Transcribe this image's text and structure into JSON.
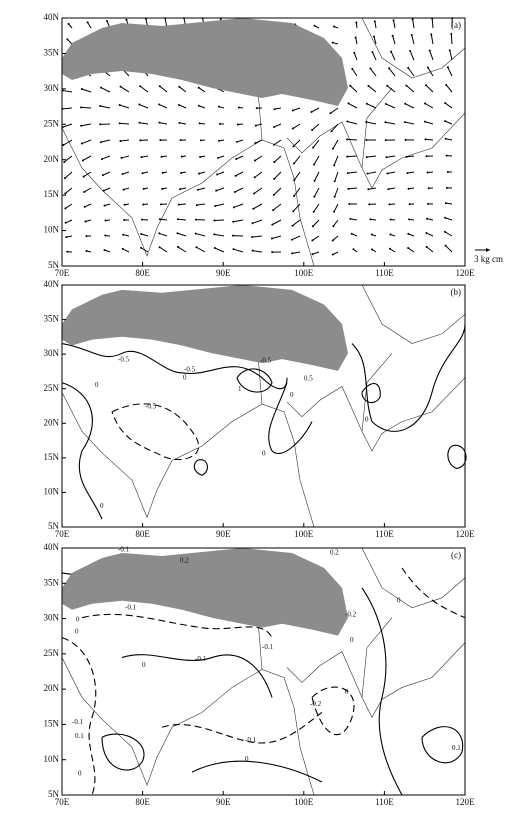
{
  "panels": [
    {
      "label": "(a)",
      "lat_labels": [
        "5N",
        "10N",
        "15N",
        "20N",
        "25N",
        "30N",
        "35N",
        "40N"
      ],
      "lon_labels": [
        "70E",
        "80E",
        "90E",
        "100E",
        "110E",
        "120E"
      ],
      "vector_legend": "3 kg cm"
    },
    {
      "label": "(b)",
      "lat_labels": [
        "5N",
        "10N",
        "15N",
        "20N",
        "25N",
        "30N",
        "35N",
        "40N"
      ],
      "lon_labels": [
        "70E",
        "80E",
        "90E",
        "100E",
        "110E",
        "120E"
      ],
      "contour_labels": [
        "-0.5",
        "-0.5",
        "-0.5",
        "1",
        "0",
        "0",
        "-0.5",
        "0",
        "0",
        "0",
        "0.5",
        "0"
      ]
    },
    {
      "label": "(c)",
      "lat_labels": [
        "5N",
        "10N",
        "15N",
        "20N",
        "25N",
        "30N",
        "35N",
        "40N"
      ],
      "lon_labels": [
        "70E",
        "80E",
        "90E",
        "100E",
        "110E",
        "120E"
      ],
      "contour_labels": [
        "-0.1",
        "0.2",
        "-0.1",
        "0",
        "0",
        "-0.1",
        "0",
        "-0.1",
        "-0.2",
        "-0.1",
        "0.1",
        "0",
        "0",
        "-0.1",
        "0.1",
        "0",
        "-0.2",
        "0.2",
        "0",
        "0"
      ]
    }
  ]
}
